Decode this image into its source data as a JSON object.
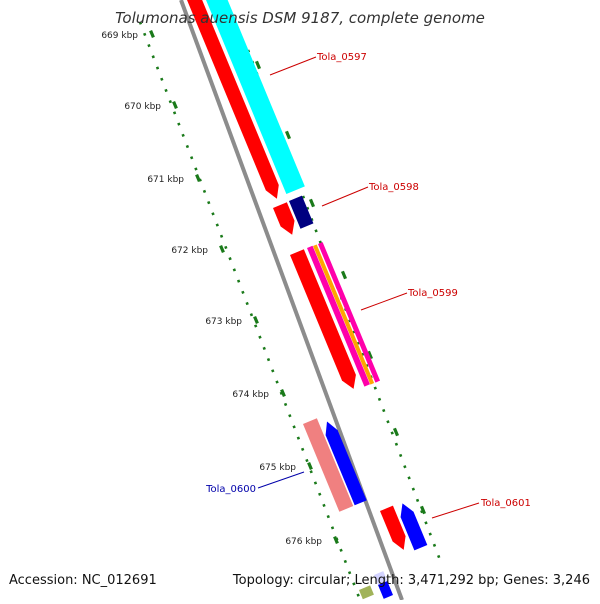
{
  "title": "Tolumonas auensis DSM 9187, complete genome",
  "footer": {
    "accession": "Accession: NC_012691",
    "info": "Topology: circular; Length: 3,471,292 bp; Genes: 3,246"
  },
  "ruler": {
    "ticks": [
      "669 kbp",
      "670 kbp",
      "671 kbp",
      "672 kbp",
      "673 kbp",
      "674 kbp",
      "675 kbp",
      "676 kbp"
    ]
  },
  "genes": [
    {
      "label": "Tola_0597",
      "label_color": "#cc0000"
    },
    {
      "label": "Tola_0598",
      "label_color": "#cc0000"
    },
    {
      "label": "Tola_0599",
      "label_color": "#cc0000"
    },
    {
      "label": "Tola_0600",
      "label_color": "#0000aa"
    },
    {
      "label": "Tola_0601",
      "label_color": "#cc0000"
    }
  ],
  "colors": {
    "backbone": "#8c8c8c",
    "cds": "#ff0000",
    "ruler": "#1a7a1a",
    "cyan": "#00ffff",
    "navy": "#000080",
    "blue": "#0000ff",
    "magenta": "#ff00aa",
    "orange": "#ffa500",
    "pink": "#f08080"
  }
}
